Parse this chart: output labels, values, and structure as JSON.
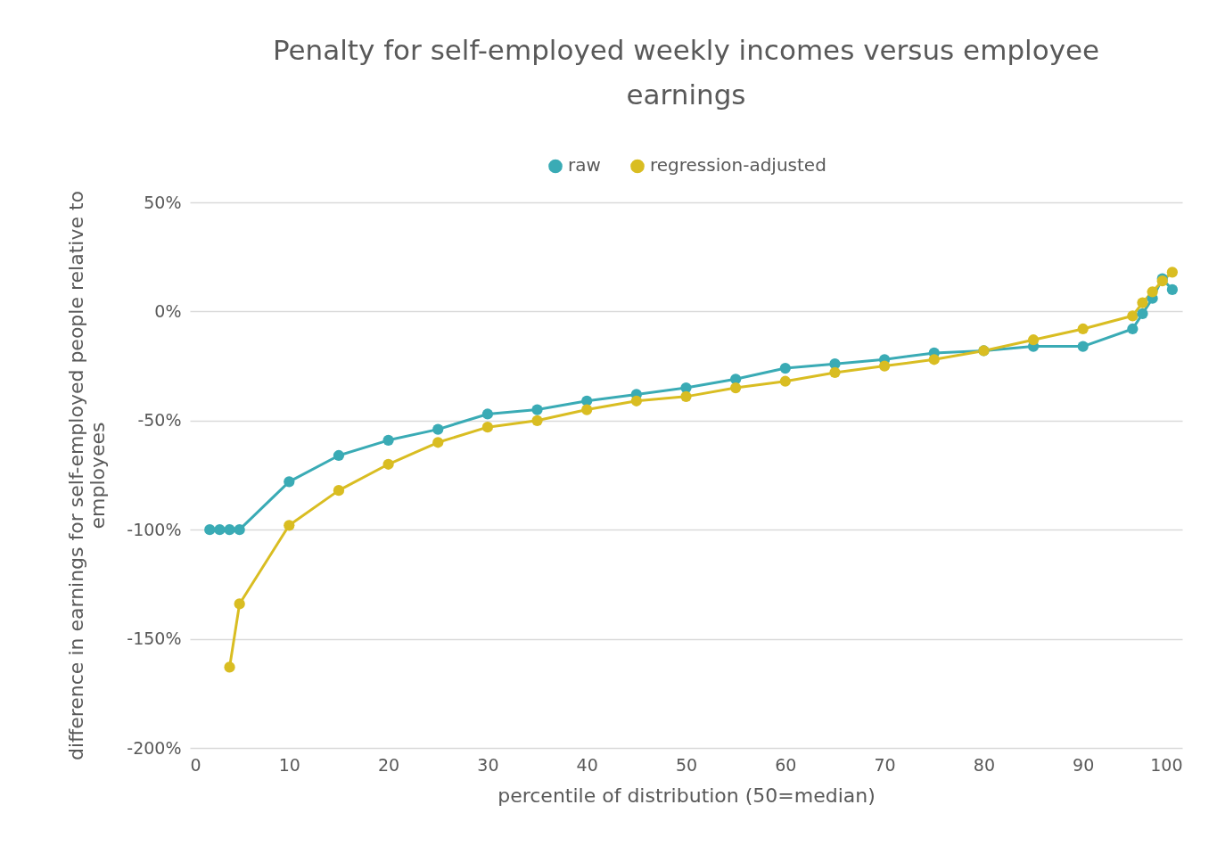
{
  "chart_data": {
    "type": "line",
    "title": "Penalty for self-employed weekly incomes versus employee earnings",
    "xlabel": "percentile of distribution (50=median)",
    "ylabel": "difference in earnings for self-employed people relative to employees",
    "x": [
      2,
      3,
      4,
      5,
      10,
      15,
      20,
      25,
      30,
      35,
      40,
      45,
      50,
      55,
      60,
      65,
      70,
      75,
      80,
      85,
      90,
      95,
      96,
      97,
      98,
      99
    ],
    "series": [
      {
        "name": "raw",
        "color": "#3aabb5",
        "values": [
          -100,
          -100,
          -100,
          -100,
          -78,
          -66,
          -59,
          -54,
          -47,
          -45,
          -41,
          -38,
          -35,
          -31,
          -26,
          -24,
          -22,
          -19,
          -18,
          -16,
          -16,
          -8,
          -1,
          6,
          15,
          10
        ]
      },
      {
        "name": "regression-adjusted",
        "color": "#d9bd22",
        "values": [
          null,
          null,
          -163,
          -134,
          -98,
          -82,
          -70,
          -60,
          -53,
          -50,
          -45,
          -41,
          -39,
          -35,
          -32,
          -28,
          -25,
          -22,
          -18,
          -13,
          -8,
          -2,
          4,
          9,
          14,
          18
        ]
      }
    ],
    "xlim": [
      0,
      100
    ],
    "xticks": [
      0,
      10,
      20,
      30,
      40,
      50,
      60,
      70,
      80,
      90,
      100
    ],
    "ylim": [
      -200,
      50
    ],
    "yticks": [
      {
        "value": -200,
        "label": "-200%"
      },
      {
        "value": -150,
        "label": "-150%"
      },
      {
        "value": -100,
        "label": "-100%"
      },
      {
        "value": -50,
        "label": "-50%"
      },
      {
        "value": 0,
        "label": "0%"
      },
      {
        "value": 50,
        "label": "50%"
      }
    ],
    "grid": "y",
    "legend": "top",
    "marker": "circle",
    "line_style": "solid"
  }
}
